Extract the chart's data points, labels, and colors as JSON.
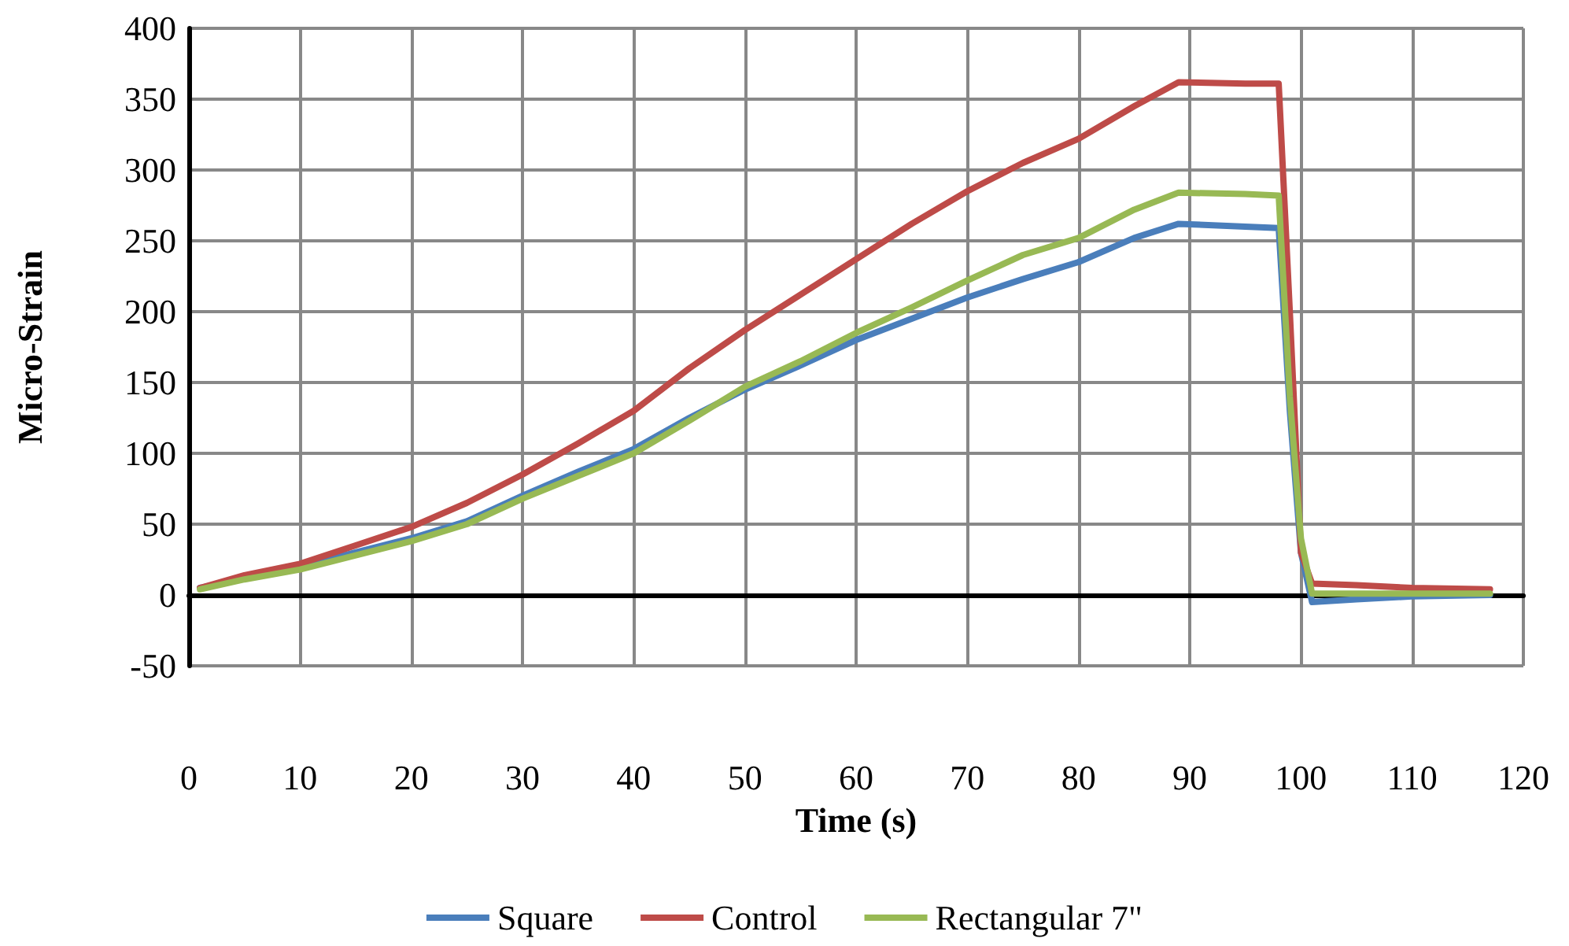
{
  "chart_data": {
    "type": "line",
    "xlabel": "Time (s)",
    "ylabel": "Micro-Strain",
    "x": [
      1,
      5,
      10,
      15,
      20,
      25,
      30,
      35,
      40,
      45,
      50,
      55,
      60,
      65,
      70,
      75,
      80,
      85,
      89,
      95,
      98,
      99,
      100,
      101,
      105,
      110,
      117
    ],
    "series": [
      {
        "name": "Square",
        "color": "#4a7ebb",
        "values": [
          5,
          12,
          20,
          30,
          40,
          52,
          70,
          87,
          103,
          125,
          145,
          162,
          180,
          195,
          210,
          223,
          235,
          252,
          262,
          260,
          259,
          130,
          30,
          -5,
          -3,
          -1,
          0
        ]
      },
      {
        "name": "Control",
        "color": "#be4b48",
        "values": [
          5,
          14,
          22,
          35,
          48,
          65,
          85,
          107,
          130,
          160,
          187,
          212,
          237,
          262,
          285,
          305,
          322,
          345,
          362,
          361,
          361,
          200,
          30,
          8,
          7,
          5,
          4
        ]
      },
      {
        "name": "Rectangular 7\"",
        "color": "#98b954",
        "values": [
          4,
          11,
          18,
          28,
          38,
          50,
          68,
          84,
          100,
          123,
          147,
          165,
          185,
          203,
          222,
          240,
          252,
          272,
          284,
          283,
          282,
          140,
          40,
          1,
          1,
          1,
          1
        ]
      }
    ],
    "xlim": [
      0,
      120
    ],
    "xticks": [
      0,
      10,
      20,
      30,
      40,
      50,
      60,
      70,
      80,
      90,
      100,
      110,
      120
    ],
    "ylim": [
      -50,
      400
    ],
    "yticks": [
      -50,
      0,
      50,
      100,
      150,
      200,
      250,
      300,
      350,
      400
    ],
    "grid": true,
    "legend": "bottom",
    "marker": "none",
    "line_style": "solid"
  }
}
